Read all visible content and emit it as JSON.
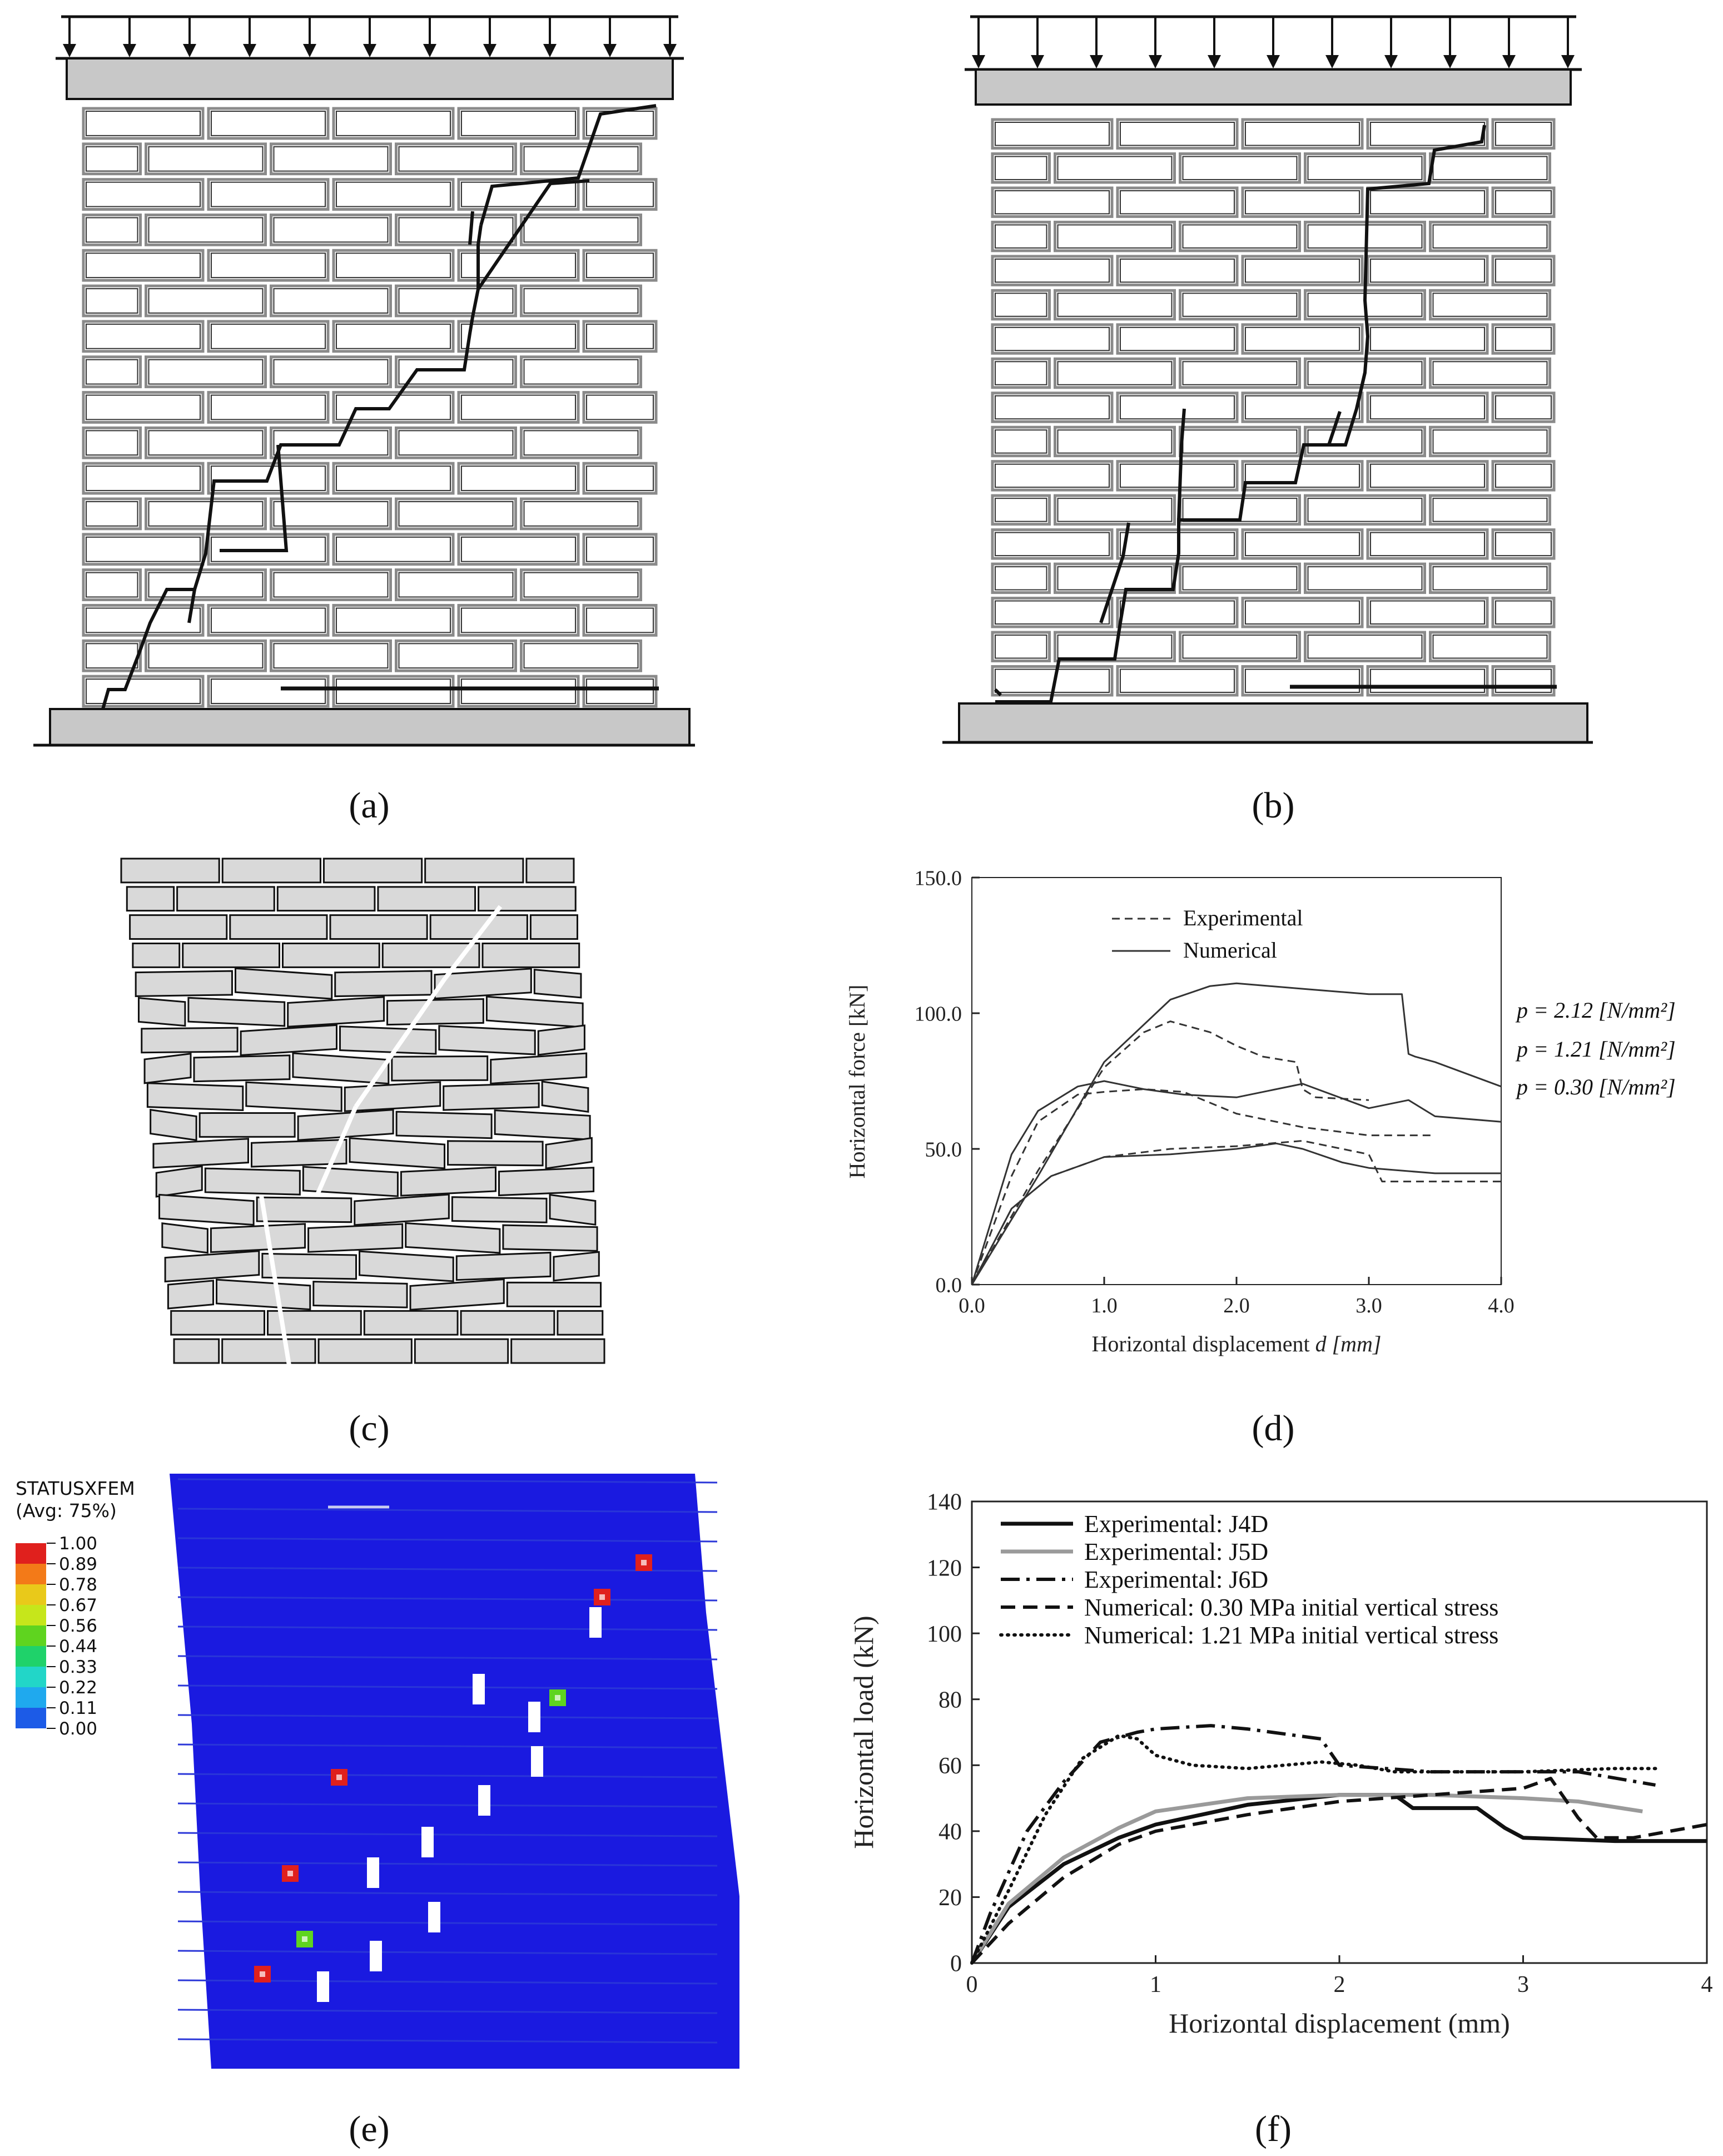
{
  "figure": {
    "captions": {
      "a": "(a)",
      "b": "(b)",
      "c": "(c)",
      "d": "(d)",
      "e": "(e)",
      "f": "(f)"
    },
    "contour": {
      "title": "STATUSXFEM",
      "subtitle": "(Avg: 75%)",
      "levels": [
        "1.00",
        "0.89",
        "0.78",
        "0.67",
        "0.56",
        "0.44",
        "0.33",
        "0.22",
        "0.11",
        "0.00"
      ],
      "colors": [
        "#e0201d",
        "#f37a18",
        "#e9c91a",
        "#c6e61b",
        "#5fd41f",
        "#1fd26a",
        "#22d6c8",
        "#1fa9ee",
        "#1c5be7",
        "#1a1ae0"
      ]
    }
  },
  "chart_data": [
    {
      "type": "line",
      "panel": "d",
      "title": "",
      "xlabel": "Horizontal displacement",
      "xlabel_var": "d",
      "xlabel_unit": "[mm]",
      "ylabel": "Horizontal force [kN]",
      "xlim": [
        0,
        4
      ],
      "ylim": [
        0,
        150
      ],
      "xticks": [
        "0.0",
        "1.0",
        "2.0",
        "3.0",
        "4.0"
      ],
      "yticks": [
        "0.0",
        "50.0",
        "100.0",
        "150.0"
      ],
      "legend": [
        "Experimental",
        "Numerical"
      ],
      "annotations": [
        "p = 2.12 [N/mm²]",
        "p = 1.21 [N/mm²]",
        "p = 0.30 [N/mm²]"
      ],
      "series": [
        {
          "name": "Experimental p=2.12",
          "style": "dashed",
          "x": [
            0,
            0.5,
            1.0,
            1.3,
            1.5,
            1.8,
            2.0,
            2.2,
            2.45,
            2.5,
            2.6,
            3.0
          ],
          "y": [
            0,
            42,
            80,
            93,
            97,
            93,
            88,
            84,
            82,
            72,
            69,
            68
          ]
        },
        {
          "name": "Numerical p=2.12",
          "style": "solid",
          "x": [
            0,
            0.5,
            1.0,
            1.5,
            1.8,
            2.0,
            2.5,
            3.0,
            3.25,
            3.3,
            3.35,
            3.5,
            4.0
          ],
          "y": [
            0,
            40,
            82,
            105,
            110,
            111,
            109,
            107,
            107,
            85,
            84,
            82,
            73
          ]
        },
        {
          "name": "Experimental p=1.21",
          "style": "dashed",
          "x": [
            0,
            0.3,
            0.5,
            0.8,
            1.0,
            1.3,
            1.6,
            2.0,
            2.5,
            3.0,
            3.5
          ],
          "y": [
            0,
            40,
            60,
            70,
            71,
            72,
            71,
            63,
            58,
            55,
            55
          ]
        },
        {
          "name": "Numerical p=1.21",
          "style": "solid",
          "x": [
            0,
            0.3,
            0.5,
            0.8,
            1.0,
            1.3,
            1.6,
            2.0,
            2.5,
            3.0,
            3.3,
            3.5,
            4.0
          ],
          "y": [
            0,
            48,
            64,
            73,
            75,
            72,
            70,
            69,
            74,
            65,
            68,
            62,
            60
          ]
        },
        {
          "name": "Experimental p=0.30",
          "style": "dashed",
          "x": [
            0,
            0.3,
            0.6,
            1.0,
            1.5,
            2.0,
            2.5,
            3.0,
            3.1,
            3.5,
            4.0
          ],
          "y": [
            0,
            28,
            40,
            47,
            50,
            51,
            53,
            48,
            38,
            38,
            38
          ]
        },
        {
          "name": "Numerical p=0.30",
          "style": "solid",
          "x": [
            0,
            0.3,
            0.6,
            1.0,
            1.5,
            2.0,
            2.3,
            2.5,
            2.8,
            3.0,
            3.5,
            4.0
          ],
          "y": [
            0,
            28,
            40,
            47,
            48,
            50,
            52,
            50,
            45,
            43,
            41,
            41
          ]
        }
      ]
    },
    {
      "type": "line",
      "panel": "f",
      "title": "",
      "xlabel": "Horizontal displacement (mm)",
      "ylabel": "Horizontal load (kN)",
      "xlim": [
        0,
        4
      ],
      "ylim": [
        0,
        140
      ],
      "xticks": [
        "0",
        "1",
        "2",
        "3",
        "4"
      ],
      "yticks": [
        "0",
        "20",
        "40",
        "60",
        "80",
        "100",
        "120",
        "140"
      ],
      "legend": [
        "Experimental: J4D",
        "Experimental: J5D",
        "Experimental: J6D",
        "Numerical: 0.30 MPa initial vertical stress",
        "Numerical: 1.21 MPa initial vertical stress"
      ],
      "series": [
        {
          "name": "Experimental: J4D",
          "style": "solid-black",
          "x": [
            0,
            0.2,
            0.5,
            0.8,
            1.0,
            1.5,
            2.0,
            2.3,
            2.4,
            2.75,
            2.9,
            3.0,
            3.5,
            4.0
          ],
          "y": [
            0,
            17,
            30,
            38,
            42,
            48,
            51,
            51,
            47,
            47,
            41,
            38,
            37,
            37
          ]
        },
        {
          "name": "Experimental: J5D",
          "style": "solid-grey",
          "x": [
            0,
            0.2,
            0.5,
            0.8,
            1.0,
            1.5,
            2.0,
            2.5,
            3.0,
            3.3,
            3.65
          ],
          "y": [
            0,
            18,
            32,
            41,
            46,
            50,
            51,
            51,
            50,
            49,
            46
          ]
        },
        {
          "name": "Experimental: J6D",
          "style": "dashdot",
          "x": [
            0,
            0.1,
            0.3,
            0.5,
            0.7,
            0.9,
            1.0,
            1.3,
            1.5,
            1.9,
            2.0,
            2.5,
            3.0,
            3.3,
            3.72
          ],
          "y": [
            0,
            15,
            40,
            55,
            67,
            70,
            71,
            72,
            71,
            68,
            60,
            58,
            58,
            58,
            54
          ]
        },
        {
          "name": "Numerical: 0.30 MPa initial vertical stress",
          "style": "dashed",
          "x": [
            0,
            0.2,
            0.5,
            0.8,
            1.0,
            1.5,
            2.0,
            2.5,
            3.0,
            3.15,
            3.3,
            3.4,
            3.6,
            4.0
          ],
          "y": [
            0,
            12,
            26,
            36,
            40,
            45,
            49,
            51,
            53,
            56,
            44,
            38,
            38,
            42
          ]
        },
        {
          "name": "Numerical: 1.21 MPa initial vertical stress",
          "style": "dotted",
          "x": [
            0,
            0.2,
            0.4,
            0.6,
            0.8,
            0.9,
            1.0,
            1.2,
            1.5,
            1.9,
            2.1,
            2.3,
            2.5,
            3.0,
            3.5,
            3.72
          ],
          "y": [
            0,
            22,
            45,
            62,
            69,
            68,
            63,
            60,
            59,
            61,
            60,
            58,
            58,
            58,
            59,
            59
          ]
        }
      ]
    }
  ]
}
